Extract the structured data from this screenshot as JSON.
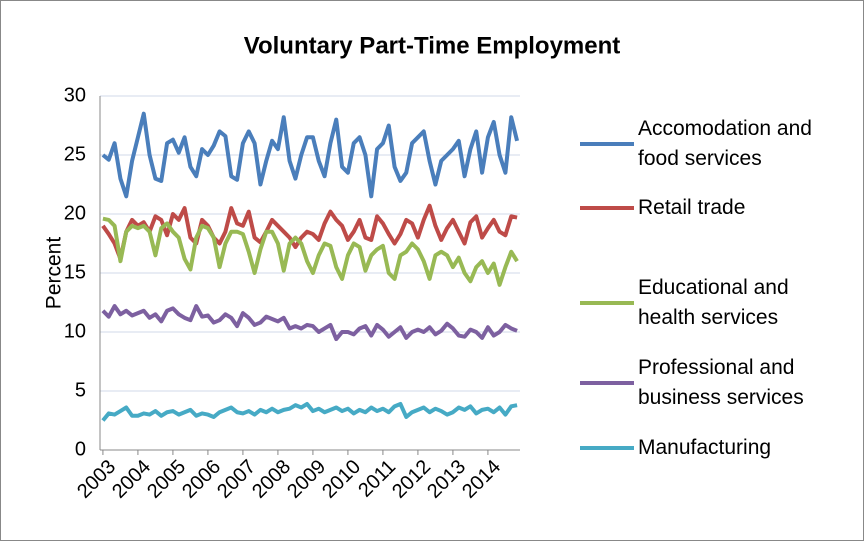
{
  "chart_data": {
    "type": "line",
    "title": "Voluntary Part-Time Employment",
    "y_label": "Percent",
    "categories": [
      "2003",
      null,
      null,
      null,
      null,
      null,
      "2004",
      null,
      null,
      null,
      null,
      null,
      "2005",
      null,
      null,
      null,
      null,
      null,
      "2006",
      null,
      null,
      null,
      null,
      null,
      "2007",
      null,
      null,
      null,
      null,
      null,
      "2008",
      null,
      null,
      null,
      null,
      null,
      "2009",
      null,
      null,
      null,
      null,
      null,
      "2010",
      null,
      null,
      null,
      null,
      null,
      "2011",
      null,
      null,
      null,
      null,
      null,
      "2012",
      null,
      null,
      null,
      null,
      null,
      "2013",
      null,
      null,
      null,
      null,
      null,
      "2014",
      null,
      null,
      null,
      null,
      null
    ],
    "ylim": [
      0,
      30
    ],
    "yticks": [
      0,
      5,
      10,
      15,
      20,
      25,
      30
    ],
    "grid": true,
    "legend": "right",
    "series": [
      {
        "name": "Accomodation and food services",
        "color": "#4a7ebb",
        "values": [
          25.0,
          24.6,
          26.0,
          23.0,
          21.5,
          24.5,
          26.5,
          28.5,
          25.0,
          23.0,
          22.8,
          26.0,
          26.3,
          25.2,
          26.5,
          24.0,
          23.2,
          25.5,
          25.0,
          25.8,
          27.0,
          26.6,
          23.2,
          22.9,
          26.0,
          27.0,
          26.0,
          22.5,
          24.5,
          26.2,
          25.5,
          28.2,
          24.5,
          23.0,
          25.0,
          26.5,
          26.5,
          24.5,
          23.2,
          26.0,
          28.0,
          24.0,
          23.5,
          26.0,
          26.5,
          25.0,
          21.5,
          25.5,
          26.0,
          27.5,
          24.0,
          22.8,
          23.5,
          26.0,
          26.5,
          27.0,
          24.5,
          22.5,
          24.5,
          25.0,
          25.5,
          26.2,
          23.2,
          25.5,
          27.0,
          23.5,
          26.5,
          27.8,
          25.0,
          23.5,
          28.2,
          26.2
        ]
      },
      {
        "name": "Retail trade",
        "color": "#be4b48",
        "values": [
          19.0,
          18.3,
          17.5,
          16.2,
          18.5,
          19.5,
          19.0,
          19.3,
          18.5,
          19.8,
          19.5,
          18.2,
          20.0,
          19.5,
          20.5,
          18.0,
          17.5,
          19.5,
          19.0,
          18.0,
          17.5,
          18.5,
          20.5,
          19.2,
          19.0,
          20.2,
          18.0,
          17.6,
          18.5,
          19.5,
          19.0,
          18.5,
          18.0,
          17.2,
          18.0,
          18.5,
          18.3,
          17.8,
          19.2,
          20.2,
          19.5,
          19.0,
          17.8,
          18.5,
          19.5,
          18.0,
          17.8,
          19.8,
          19.2,
          18.3,
          17.5,
          18.3,
          19.5,
          19.2,
          18.0,
          19.5,
          20.7,
          19.0,
          17.8,
          18.8,
          19.5,
          18.5,
          17.5,
          19.3,
          19.8,
          18.0,
          18.8,
          19.5,
          18.5,
          18.2,
          19.8,
          19.7
        ]
      },
      {
        "name": "Educational and health services",
        "color": "#98b954",
        "values": [
          19.6,
          19.5,
          19.0,
          16.0,
          18.5,
          19.0,
          18.8,
          19.0,
          18.5,
          16.5,
          18.8,
          19.2,
          18.5,
          18.0,
          16.2,
          15.3,
          18.0,
          19.0,
          18.8,
          18.0,
          15.5,
          17.5,
          18.5,
          18.5,
          18.3,
          16.8,
          15.0,
          17.0,
          18.5,
          18.5,
          17.5,
          15.2,
          17.5,
          18.0,
          17.5,
          16.0,
          15.0,
          16.5,
          17.5,
          17.3,
          15.5,
          14.5,
          16.5,
          17.5,
          17.2,
          15.2,
          16.5,
          17.0,
          17.3,
          15.0,
          14.5,
          16.5,
          16.8,
          17.5,
          17.0,
          16.0,
          14.5,
          16.5,
          16.8,
          16.5,
          15.5,
          16.3,
          15.0,
          14.3,
          15.5,
          16.0,
          15.0,
          15.8,
          14.0,
          15.5,
          16.8,
          16.0
        ]
      },
      {
        "name": "Professional and business services",
        "color": "#7d60a0",
        "values": [
          11.8,
          11.3,
          12.2,
          11.5,
          11.8,
          11.4,
          11.6,
          11.8,
          11.2,
          11.5,
          10.9,
          11.8,
          12.0,
          11.5,
          11.2,
          11.0,
          12.2,
          11.3,
          11.4,
          10.8,
          11.0,
          11.5,
          11.2,
          10.5,
          11.6,
          11.2,
          10.6,
          10.8,
          11.3,
          11.1,
          10.9,
          11.2,
          10.3,
          10.5,
          10.3,
          10.6,
          10.5,
          10.0,
          10.3,
          10.6,
          9.4,
          10.0,
          10.0,
          9.8,
          10.3,
          10.5,
          9.7,
          10.6,
          10.2,
          9.6,
          10.0,
          10.4,
          9.5,
          10.0,
          10.2,
          10.0,
          10.4,
          9.8,
          10.1,
          10.7,
          10.3,
          9.7,
          9.6,
          10.2,
          10.0,
          9.5,
          10.4,
          9.7,
          10.0,
          10.6,
          10.3,
          10.1
        ]
      },
      {
        "name": "Manufacturing",
        "color": "#46aac5",
        "values": [
          2.5,
          3.1,
          3.0,
          3.3,
          3.6,
          2.9,
          2.9,
          3.1,
          3.0,
          3.3,
          2.9,
          3.2,
          3.3,
          3.0,
          3.2,
          3.4,
          2.9,
          3.1,
          3.0,
          2.8,
          3.2,
          3.4,
          3.6,
          3.2,
          3.1,
          3.3,
          3.0,
          3.4,
          3.2,
          3.5,
          3.2,
          3.4,
          3.5,
          3.8,
          3.6,
          3.9,
          3.3,
          3.5,
          3.2,
          3.4,
          3.6,
          3.3,
          3.5,
          3.1,
          3.4,
          3.2,
          3.6,
          3.3,
          3.5,
          3.2,
          3.7,
          3.9,
          2.8,
          3.2,
          3.4,
          3.6,
          3.2,
          3.5,
          3.3,
          3.0,
          3.2,
          3.6,
          3.4,
          3.7,
          3.1,
          3.4,
          3.5,
          3.2,
          3.6,
          3.0,
          3.7,
          3.8
        ]
      }
    ]
  }
}
